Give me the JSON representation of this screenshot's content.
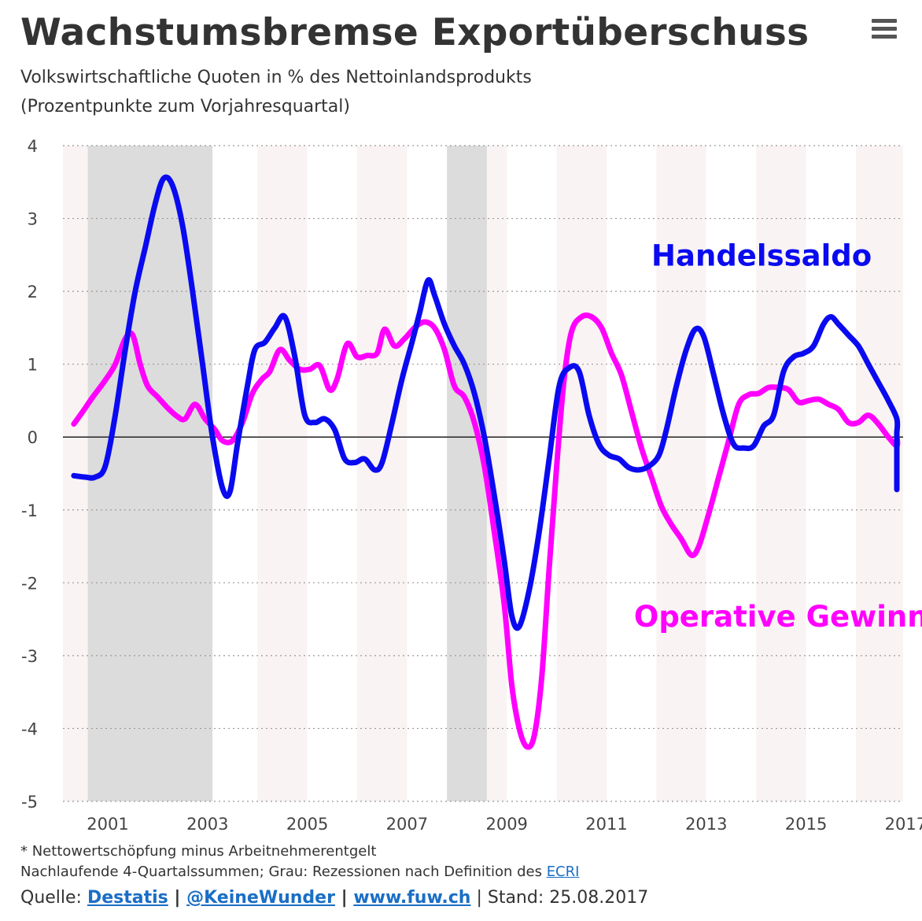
{
  "header": {
    "title": "Wachstumsbremse Exportüberschuss",
    "subtitle1": "Volkswirtschaftliche Quoten in % des Nettoinlandsprodukts",
    "subtitle2": "(Prozentpunkte zum Vorjahresquartal)",
    "menu_icon": "hamburger-menu-icon"
  },
  "footer": {
    "note1": "* Nettowertschöpfung minus Arbeitnehmerentgelt",
    "note2_prefix": "Nachlaufende 4-Quartalssummen; Grau: Rezessionen nach Definition des ",
    "note2_link": "ECRI",
    "source_prefix": "Quelle: ",
    "source_link1": "Destatis",
    "sep1": " | ",
    "source_link2": "@KeineWunder",
    "sep2": " | ",
    "source_link3": "www.fuw.ch",
    "stand": " | Stand: 25.08.2017"
  },
  "chart_data": {
    "type": "line",
    "xlim": [
      2000.2,
      2017.0
    ],
    "ylim": [
      -5,
      4
    ],
    "yticks": [
      "4",
      "3",
      "2",
      "1",
      "0",
      "-1",
      "-2",
      "-3",
      "-4",
      "-5"
    ],
    "xticks": [
      {
        "label": "2001",
        "year": 2001
      },
      {
        "label": "2003",
        "year": 2003
      },
      {
        "label": "2005",
        "year": 2005
      },
      {
        "label": "2007",
        "year": 2007
      },
      {
        "label": "2009",
        "year": 2009
      },
      {
        "label": "2011",
        "year": 2011
      },
      {
        "label": "2013",
        "year": 2013
      },
      {
        "label": "2015",
        "year": 2015
      },
      {
        "label": "2017",
        "year": 2017
      }
    ],
    "recessions": [
      [
        2000.6,
        2003.1
      ],
      [
        2007.8,
        2008.6
      ]
    ],
    "grid": true,
    "colors": {
      "handelssaldo": "#0a0af0",
      "gewinne": "#ff00ff",
      "recession": "#dcdcdc",
      "band": "#f9f3f3",
      "grid": "#999999",
      "zero": "#222222"
    },
    "series": [
      {
        "name": "Handelssaldo",
        "color": "#0a0af0",
        "label_year": 2011.9,
        "label_value": 2.35,
        "points": [
          [
            2000.32,
            -0.53
          ],
          [
            2000.55,
            -0.55
          ],
          [
            2000.75,
            -0.55
          ],
          [
            2000.95,
            -0.4
          ],
          [
            2001.15,
            0.3
          ],
          [
            2001.35,
            1.2
          ],
          [
            2001.55,
            2.0
          ],
          [
            2001.75,
            2.6
          ],
          [
            2001.95,
            3.2
          ],
          [
            2002.12,
            3.55
          ],
          [
            2002.3,
            3.45
          ],
          [
            2002.5,
            2.9
          ],
          [
            2002.7,
            2.0
          ],
          [
            2002.9,
            1.0
          ],
          [
            2003.1,
            0.0
          ],
          [
            2003.3,
            -0.7
          ],
          [
            2003.45,
            -0.75
          ],
          [
            2003.6,
            -0.1
          ],
          [
            2003.8,
            0.7
          ],
          [
            2003.95,
            1.2
          ],
          [
            2004.15,
            1.3
          ],
          [
            2004.35,
            1.5
          ],
          [
            2004.55,
            1.65
          ],
          [
            2004.75,
            1.1
          ],
          [
            2004.95,
            0.3
          ],
          [
            2005.15,
            0.2
          ],
          [
            2005.35,
            0.25
          ],
          [
            2005.55,
            0.1
          ],
          [
            2005.75,
            -0.3
          ],
          [
            2005.95,
            -0.35
          ],
          [
            2006.15,
            -0.3
          ],
          [
            2006.35,
            -0.45
          ],
          [
            2006.5,
            -0.35
          ],
          [
            2006.7,
            0.2
          ],
          [
            2006.9,
            0.8
          ],
          [
            2007.1,
            1.3
          ],
          [
            2007.25,
            1.7
          ],
          [
            2007.42,
            2.15
          ],
          [
            2007.55,
            1.95
          ],
          [
            2007.75,
            1.55
          ],
          [
            2007.95,
            1.25
          ],
          [
            2008.15,
            1.0
          ],
          [
            2008.35,
            0.6
          ],
          [
            2008.55,
            0.0
          ],
          [
            2008.75,
            -0.8
          ],
          [
            2008.95,
            -1.7
          ],
          [
            2009.1,
            -2.45
          ],
          [
            2009.25,
            -2.6
          ],
          [
            2009.45,
            -2.1
          ],
          [
            2009.65,
            -1.3
          ],
          [
            2009.85,
            -0.3
          ],
          [
            2010.05,
            0.7
          ],
          [
            2010.25,
            0.95
          ],
          [
            2010.45,
            0.9
          ],
          [
            2010.65,
            0.3
          ],
          [
            2010.85,
            -0.1
          ],
          [
            2011.05,
            -0.25
          ],
          [
            2011.25,
            -0.3
          ],
          [
            2011.45,
            -0.42
          ],
          [
            2011.65,
            -0.45
          ],
          [
            2011.85,
            -0.4
          ],
          [
            2012.05,
            -0.25
          ],
          [
            2012.2,
            0.1
          ],
          [
            2012.4,
            0.7
          ],
          [
            2012.6,
            1.2
          ],
          [
            2012.78,
            1.48
          ],
          [
            2012.95,
            1.38
          ],
          [
            2013.15,
            0.85
          ],
          [
            2013.35,
            0.3
          ],
          [
            2013.55,
            -0.1
          ],
          [
            2013.75,
            -0.15
          ],
          [
            2013.95,
            -0.12
          ],
          [
            2014.15,
            0.15
          ],
          [
            2014.35,
            0.3
          ],
          [
            2014.55,
            0.9
          ],
          [
            2014.75,
            1.1
          ],
          [
            2014.95,
            1.15
          ],
          [
            2015.15,
            1.25
          ],
          [
            2015.35,
            1.55
          ],
          [
            2015.5,
            1.65
          ],
          [
            2015.65,
            1.55
          ],
          [
            2015.85,
            1.4
          ],
          [
            2016.05,
            1.25
          ],
          [
            2016.25,
            1.0
          ],
          [
            2016.45,
            0.75
          ],
          [
            2016.65,
            0.5
          ],
          [
            2016.85,
            0.25
          ],
          [
            2017.05,
            0.05
          ],
          [
            2017.25,
            -0.1
          ],
          [
            2017.4,
            -0.25
          ],
          [
            2017.48,
            -0.72
          ]
        ]
      },
      {
        "name": "Operative Gewinne",
        "color": "#ff00ff",
        "label_year": 2011.55,
        "label_value": -2.6,
        "points": [
          [
            2000.32,
            0.18
          ],
          [
            2000.5,
            0.35
          ],
          [
            2000.7,
            0.55
          ],
          [
            2000.95,
            0.78
          ],
          [
            2001.15,
            1.0
          ],
          [
            2001.35,
            1.35
          ],
          [
            2001.5,
            1.4
          ],
          [
            2001.65,
            1.0
          ],
          [
            2001.8,
            0.7
          ],
          [
            2002.0,
            0.55
          ],
          [
            2002.2,
            0.4
          ],
          [
            2002.4,
            0.28
          ],
          [
            2002.55,
            0.25
          ],
          [
            2002.75,
            0.45
          ],
          [
            2002.95,
            0.25
          ],
          [
            2003.15,
            0.1
          ],
          [
            2003.3,
            -0.05
          ],
          [
            2003.5,
            -0.05
          ],
          [
            2003.7,
            0.2
          ],
          [
            2003.9,
            0.6
          ],
          [
            2004.1,
            0.8
          ],
          [
            2004.25,
            0.9
          ],
          [
            2004.45,
            1.2
          ],
          [
            2004.65,
            1.05
          ],
          [
            2004.85,
            0.93
          ],
          [
            2005.05,
            0.93
          ],
          [
            2005.25,
            0.98
          ],
          [
            2005.45,
            0.65
          ],
          [
            2005.6,
            0.8
          ],
          [
            2005.8,
            1.28
          ],
          [
            2006.0,
            1.1
          ],
          [
            2006.2,
            1.12
          ],
          [
            2006.4,
            1.15
          ],
          [
            2006.55,
            1.48
          ],
          [
            2006.75,
            1.25
          ],
          [
            2006.95,
            1.35
          ],
          [
            2007.15,
            1.5
          ],
          [
            2007.35,
            1.58
          ],
          [
            2007.55,
            1.5
          ],
          [
            2007.75,
            1.2
          ],
          [
            2007.95,
            0.7
          ],
          [
            2008.15,
            0.55
          ],
          [
            2008.35,
            0.2
          ],
          [
            2008.55,
            -0.4
          ],
          [
            2008.75,
            -1.3
          ],
          [
            2008.95,
            -2.3
          ],
          [
            2009.1,
            -3.4
          ],
          [
            2009.25,
            -4.0
          ],
          [
            2009.4,
            -4.25
          ],
          [
            2009.55,
            -4.1
          ],
          [
            2009.7,
            -3.3
          ],
          [
            2009.85,
            -1.8
          ],
          [
            2010.0,
            -0.4
          ],
          [
            2010.15,
            0.8
          ],
          [
            2010.3,
            1.45
          ],
          [
            2010.5,
            1.65
          ],
          [
            2010.7,
            1.65
          ],
          [
            2010.9,
            1.5
          ],
          [
            2011.1,
            1.15
          ],
          [
            2011.3,
            0.85
          ],
          [
            2011.5,
            0.35
          ],
          [
            2011.7,
            -0.15
          ],
          [
            2011.9,
            -0.55
          ],
          [
            2012.1,
            -0.95
          ],
          [
            2012.3,
            -1.2
          ],
          [
            2012.5,
            -1.4
          ],
          [
            2012.7,
            -1.62
          ],
          [
            2012.85,
            -1.5
          ],
          [
            2013.05,
            -1.05
          ],
          [
            2013.25,
            -0.55
          ],
          [
            2013.45,
            -0.05
          ],
          [
            2013.65,
            0.45
          ],
          [
            2013.85,
            0.58
          ],
          [
            2014.05,
            0.6
          ],
          [
            2014.25,
            0.68
          ],
          [
            2014.45,
            0.68
          ],
          [
            2014.65,
            0.65
          ],
          [
            2014.85,
            0.48
          ],
          [
            2015.05,
            0.5
          ],
          [
            2015.25,
            0.52
          ],
          [
            2015.45,
            0.45
          ],
          [
            2015.65,
            0.38
          ],
          [
            2015.85,
            0.2
          ],
          [
            2016.05,
            0.2
          ],
          [
            2016.25,
            0.3
          ],
          [
            2016.45,
            0.18
          ],
          [
            2016.65,
            0.0
          ],
          [
            2016.85,
            -0.12
          ],
          [
            2017.05,
            0.02
          ],
          [
            2017.2,
            0.03
          ],
          [
            2017.35,
            -0.22
          ],
          [
            2017.48,
            -0.55
          ]
        ]
      }
    ]
  }
}
